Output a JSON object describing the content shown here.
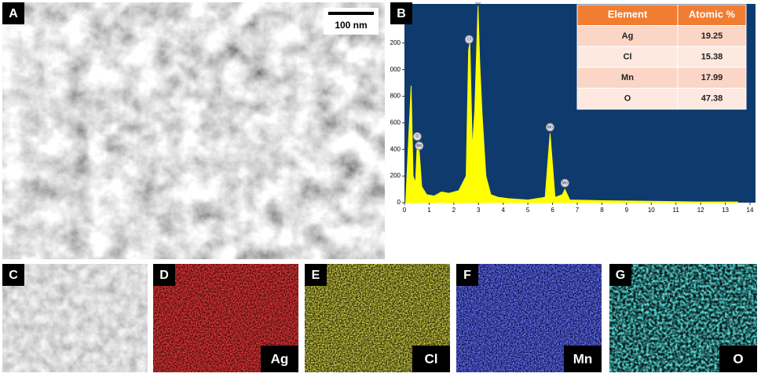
{
  "panel_labels": [
    "A",
    "B",
    "C",
    "D",
    "E",
    "F",
    "G"
  ],
  "scale_bar": "100 nm",
  "table": {
    "header": [
      "Element",
      "Atomic %"
    ],
    "rows": [
      [
        "Ag",
        "19.25"
      ],
      [
        "Cl",
        "15.38"
      ],
      [
        "Mn",
        "17.99"
      ],
      [
        "O",
        "47.38"
      ]
    ]
  },
  "chart_data": {
    "type": "area",
    "color": "#ffff00",
    "x": [
      0.05,
      0.15,
      0.27,
      0.35,
      0.45,
      0.52,
      0.6,
      0.7,
      0.9,
      1.2,
      1.5,
      1.8,
      2.2,
      2.5,
      2.6,
      2.65,
      2.75,
      2.85,
      2.98,
      3.05,
      3.15,
      3.3,
      3.5,
      3.8,
      4.2,
      5,
      5.7,
      5.9,
      6.1,
      6.4,
      6.5,
      6.7,
      8,
      10,
      12,
      13.5
    ],
    "values": [
      0,
      400,
      880,
      200,
      150,
      450,
      380,
      120,
      60,
      50,
      80,
      70,
      90,
      200,
      1150,
      1200,
      400,
      700,
      1480,
      1050,
      650,
      200,
      60,
      40,
      30,
      20,
      40,
      520,
      40,
      60,
      100,
      20,
      15,
      10,
      5,
      5
    ],
    "xlim": [
      0,
      14
    ],
    "ylim": [
      0,
      1500
    ],
    "xticks": [
      0,
      1,
      2,
      3,
      4,
      5,
      6,
      7,
      8,
      9,
      10,
      11,
      12,
      13,
      14
    ],
    "yticks": [
      0,
      200,
      400,
      600,
      800,
      1000,
      1200
    ],
    "annotations": [
      {
        "label": "O",
        "x": 0.52,
        "y": 450
      },
      {
        "label": "Mn",
        "x": 0.6,
        "y": 380
      },
      {
        "label": "Cl",
        "x": 2.62,
        "y": 1180
      },
      {
        "label": "Ag",
        "x": 2.98,
        "y": 1480
      },
      {
        "label": "Mn",
        "x": 5.9,
        "y": 520
      },
      {
        "label": "Mn",
        "x": 6.5,
        "y": 100
      }
    ]
  },
  "maps": [
    "Ag",
    "Cl",
    "Mn",
    "O"
  ]
}
